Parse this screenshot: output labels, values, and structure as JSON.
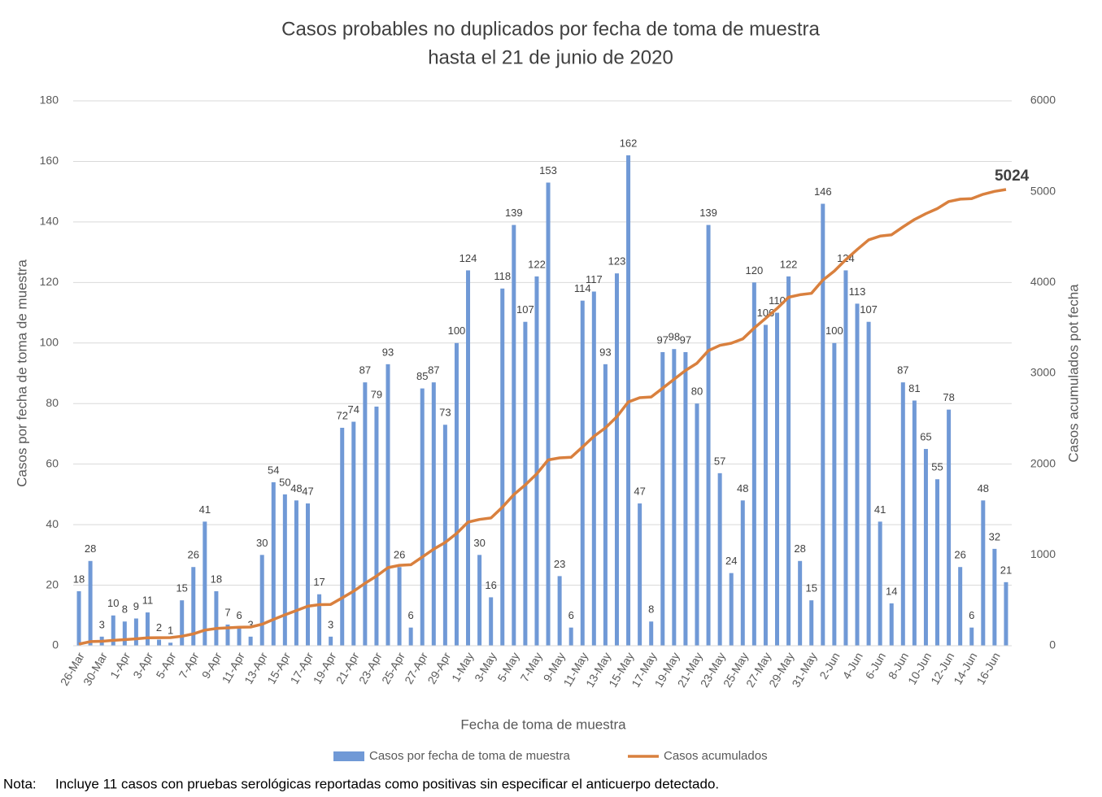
{
  "chart_data": {
    "type": "combo",
    "title": [
      "Casos probables no duplicados por fecha de toma de muestra",
      "hasta el 21 de junio de 2020"
    ],
    "x_label": "Fecha de toma de muestra",
    "y_label": "Casos por fecha de toma de muestra",
    "y2_label": "Casos acumulados pot fecha",
    "categories": [
      "26-Mar",
      null,
      "30-Mar",
      null,
      "1-Apr",
      null,
      "3-Apr",
      null,
      "5-Apr",
      null,
      "7-Apr",
      null,
      "9-Apr",
      null,
      "11-Apr",
      null,
      "13-Apr",
      null,
      "15-Apr",
      null,
      "17-Apr",
      null,
      "19-Apr",
      null,
      "21-Apr",
      null,
      "23-Apr",
      null,
      "25-Apr",
      null,
      "27-Apr",
      null,
      "29-Apr",
      null,
      "1-May",
      null,
      "3-May",
      null,
      "5-May",
      null,
      "7-May",
      null,
      "9-May",
      null,
      "11-May",
      null,
      "13-May",
      null,
      "15-May",
      null,
      "17-May",
      null,
      "19-May",
      null,
      "21-May",
      null,
      "23-May",
      null,
      "25-May",
      null,
      "27-May",
      null,
      "29-May",
      null,
      "31-May",
      null,
      "2-Jun",
      null,
      "4-Jun",
      null,
      "6-Jun",
      null,
      "8-Jun",
      null,
      "10-Jun",
      null,
      "12-Jun",
      null,
      "14-Jun",
      null,
      "16-Jun",
      null
    ],
    "series": [
      {
        "name": "Casos por fecha de toma de muestra",
        "type": "bar",
        "color": "#7099d6",
        "values": [
          18,
          28,
          3,
          10,
          8,
          9,
          11,
          2,
          1,
          15,
          26,
          41,
          18,
          7,
          6,
          3,
          30,
          54,
          50,
          48,
          47,
          17,
          3,
          72,
          74,
          87,
          79,
          93,
          26,
          6,
          85,
          87,
          73,
          100,
          124,
          30,
          16,
          118,
          139,
          107,
          122,
          153,
          23,
          6,
          114,
          117,
          93,
          123,
          162,
          47,
          8,
          97,
          98,
          97,
          80,
          139,
          57,
          24,
          48,
          120,
          106,
          110,
          122,
          28,
          15,
          146,
          100,
          124,
          113,
          107,
          41,
          14,
          87,
          81,
          65,
          55,
          78,
          26,
          6,
          48,
          32,
          21
        ]
      },
      {
        "name": "Casos acumulados",
        "type": "line",
        "axis": "y2",
        "color": "#d9803e",
        "values": [
          18,
          46,
          49,
          59,
          67,
          76,
          87,
          89,
          90,
          105,
          131,
          172,
          190,
          197,
          203,
          206,
          236,
          290,
          340,
          388,
          435,
          452,
          455,
          527,
          601,
          688,
          767,
          860,
          886,
          892,
          977,
          1064,
          1137,
          1237,
          1361,
          1391,
          1407,
          1525,
          1664,
          1771,
          1893,
          2046,
          2069,
          2075,
          2189,
          2306,
          2399,
          2522,
          2684,
          2731,
          2739,
          2836,
          2934,
          3031,
          3111,
          3250,
          3307,
          3331,
          3379,
          3499,
          3605,
          3715,
          3837,
          3865,
          3880,
          4026,
          4126,
          4250,
          4363,
          4470,
          4511,
          4525,
          4612,
          4693,
          4758,
          4813,
          4891,
          4917,
          4923,
          4971,
          5003,
          5024
        ]
      }
    ],
    "ylim": [
      0,
      180
    ],
    "yticks": [
      0,
      20,
      40,
      60,
      80,
      100,
      120,
      140,
      160,
      180
    ],
    "y2lim": [
      0,
      6000
    ],
    "y2ticks": [
      0,
      1000,
      2000,
      3000,
      4000,
      5000,
      6000
    ],
    "grid": true,
    "legend": "bottom",
    "note_label": "Nota:",
    "note": "Incluye 11 casos con pruebas serológicas reportadas como positivas sin especificar el anticuerpo detectado."
  }
}
